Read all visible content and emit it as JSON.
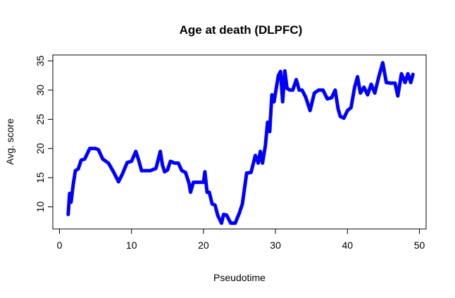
{
  "chart_data": {
    "type": "line",
    "title": "Age at death (DLPFC)",
    "xlabel": "Pseudotime",
    "ylabel": "Avg. score",
    "xlim": [
      0,
      50
    ],
    "ylim": [
      7,
      35
    ],
    "x_ticks": [
      0,
      10,
      20,
      30,
      40,
      50
    ],
    "y_ticks": [
      10,
      15,
      20,
      25,
      30,
      35
    ],
    "grid": false,
    "legend": "none",
    "line_color": "#0000ff",
    "series": [
      {
        "x": [
          1.2,
          1.4,
          1.6,
          1.9,
          2.2,
          2.6,
          3.0,
          3.5,
          4.2,
          5.0,
          5.4,
          6.0,
          6.8,
          7.5,
          8.2,
          8.8,
          9.4,
          10.0,
          10.6,
          11.0,
          11.4,
          12.0,
          12.6,
          13.4,
          14.0,
          14.3,
          14.6,
          15.0,
          15.4,
          16.0,
          16.5,
          17.0,
          17.5,
          18.0,
          18.2,
          18.6,
          19.2,
          20.0,
          20.2,
          20.5,
          20.8,
          21.2,
          21.6,
          22.0,
          22.5,
          22.8,
          23.2,
          23.8,
          24.4,
          25.0,
          25.4,
          26.0,
          26.6,
          27.2,
          27.6,
          27.9,
          28.2,
          28.6,
          28.9,
          29.2,
          29.5,
          29.8,
          30.0,
          30.4,
          30.7,
          31.0,
          31.3,
          31.6,
          32.0,
          32.4,
          32.9,
          33.3,
          33.7,
          34.2,
          34.8,
          35.4,
          36.0,
          36.6,
          37.2,
          37.8,
          38.3,
          38.7,
          39.0,
          39.5,
          40.0,
          40.5,
          41.0,
          41.4,
          41.8,
          42.3,
          42.8,
          43.3,
          43.8,
          44.4,
          44.9,
          45.4,
          46.0,
          46.6,
          47.0,
          47.5,
          48.0,
          48.4,
          48.8,
          49.1
        ],
        "y": [
          8.7,
          12.3,
          10.8,
          13.8,
          16.2,
          16.5,
          18.0,
          18.2,
          20.0,
          20.0,
          19.8,
          18.2,
          17.5,
          16.0,
          14.3,
          15.8,
          17.6,
          17.8,
          19.5,
          18.0,
          16.2,
          16.2,
          16.2,
          16.6,
          19.5,
          17.2,
          16.0,
          16.3,
          17.8,
          17.5,
          17.5,
          16.2,
          15.9,
          14.0,
          12.5,
          14.2,
          14.2,
          14.2,
          16.0,
          12.5,
          12.5,
          10.5,
          10.3,
          8.5,
          7.2,
          8.7,
          8.6,
          7.2,
          7.2,
          9.0,
          10.5,
          15.8,
          15.9,
          18.8,
          17.5,
          19.5,
          17.5,
          20.5,
          24.5,
          22.9,
          29.2,
          28.0,
          29.5,
          32.5,
          33.2,
          28.0,
          33.3,
          30.3,
          30.0,
          30.0,
          31.8,
          30.0,
          30.0,
          28.8,
          26.5,
          29.5,
          30.0,
          30.0,
          28.5,
          28.7,
          30.0,
          26.8,
          25.5,
          25.2,
          26.5,
          27.0,
          30.5,
          32.3,
          29.5,
          30.5,
          29.2,
          31.0,
          29.5,
          32.5,
          34.7,
          31.3,
          31.2,
          31.2,
          29.0,
          32.8,
          31.3,
          32.8,
          31.3,
          32.7
        ]
      }
    ]
  }
}
